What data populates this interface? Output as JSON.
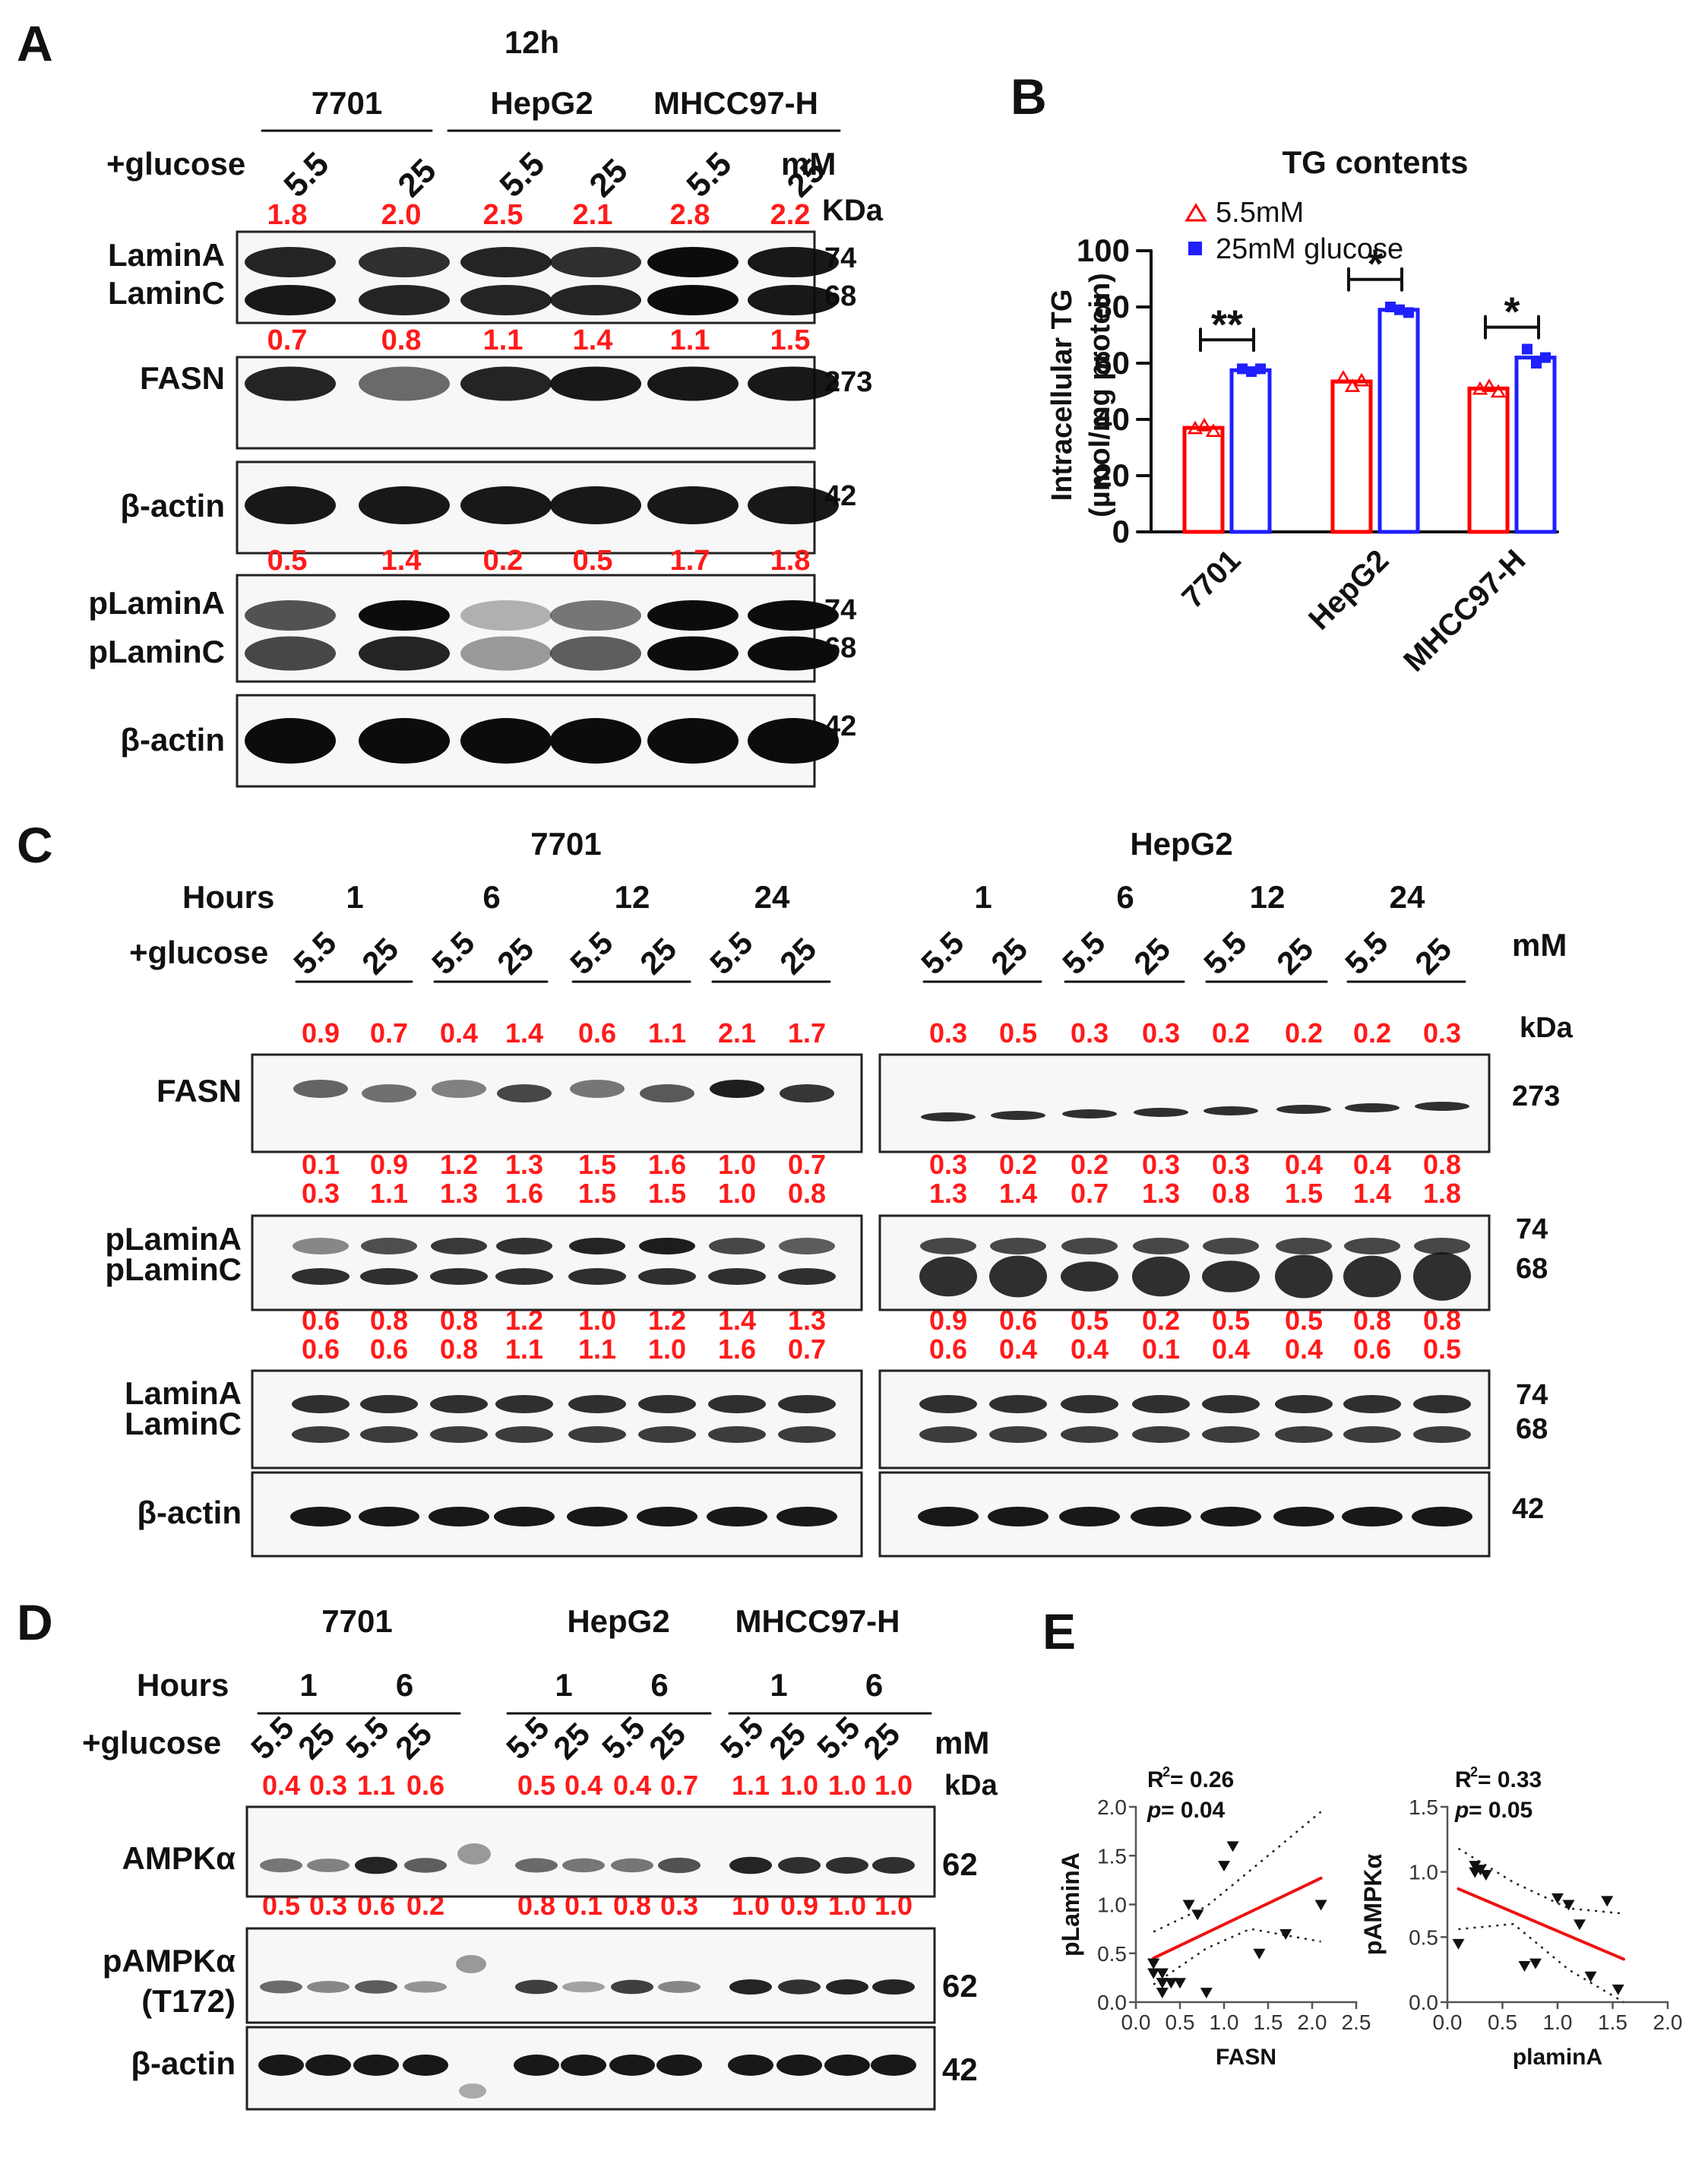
{
  "panelA": {
    "letter": "A",
    "time": "12h",
    "cell_lines": [
      "7701",
      "HepG2",
      "MHCC97-H"
    ],
    "glucose_label": "+glucose",
    "lanes": [
      "5.5",
      "25",
      "5.5",
      "25",
      "5.5",
      "25"
    ],
    "unit": "mM",
    "kda": "KDa",
    "blots": [
      {
        "labels": [
          "LaminA",
          "LaminC"
        ],
        "kda": [
          "74",
          "68"
        ],
        "quant": [
          "1.8",
          "2.0",
          "2.5",
          "2.1",
          "2.8",
          "2.2"
        ]
      },
      {
        "labels": [
          "FASN"
        ],
        "kda": [
          "273"
        ],
        "quant": [
          "0.7",
          "0.8",
          "1.1",
          "1.4",
          "1.1",
          "1.5"
        ]
      },
      {
        "labels": [
          "β-actin"
        ],
        "kda": [
          "42"
        ],
        "quant": []
      },
      {
        "labels": [
          "pLaminA",
          "pLaminC"
        ],
        "kda": [
          "74",
          "68"
        ],
        "quant": [
          "0.5",
          "1.4",
          "0.2",
          "0.5",
          "1.7",
          "1.8"
        ]
      },
      {
        "labels": [
          "β-actin"
        ],
        "kda": [
          "42"
        ],
        "quant": []
      }
    ]
  },
  "panelB": {
    "letter": "B",
    "chart_data": {
      "type": "bar",
      "title": "TG contents",
      "ylabel": "Intracellular TG",
      "ylabel2": "(µmol/mg protein)",
      "categories": [
        "7701",
        "HepG2",
        "MHCC97-H"
      ],
      "series": [
        {
          "name": "5.5mM",
          "color": "#ff0000",
          "marker": "triangle-open",
          "values": [
            37,
            53.5,
            51
          ],
          "points": [
            [
              37,
              38,
              36
            ],
            [
              55,
              52,
              54
            ],
            [
              51,
              52,
              50
            ]
          ]
        },
        {
          "name": "25mM glucose",
          "color": "#1f1fff",
          "marker": "square",
          "values": [
            57.5,
            79,
            62
          ],
          "points": [
            [
              58,
              57,
              58
            ],
            [
              80,
              79,
              78
            ],
            [
              65,
              60,
              62
            ]
          ]
        }
      ],
      "ylim": [
        0,
        100
      ],
      "yticks": [
        "0",
        "20",
        "40",
        "60",
        "80",
        "100"
      ],
      "significance": [
        "**",
        "*",
        "*"
      ]
    }
  },
  "panelC": {
    "letter": "C",
    "hours_label": "Hours",
    "glucose_label": "+glucose",
    "unit": "mM",
    "kda": "kDa",
    "hours": [
      "1",
      "6",
      "12",
      "24"
    ],
    "lanes": [
      "5.5",
      "25",
      "5.5",
      "25",
      "5.5",
      "25",
      "5.5",
      "25"
    ],
    "left": {
      "title": "7701",
      "fasn_quant": [
        "0.9",
        "0.7",
        "0.4",
        "1.4",
        "0.6",
        "1.1",
        "2.1",
        "1.7"
      ],
      "plamin_quant_a": [
        "0.1",
        "0.9",
        "1.2",
        "1.3",
        "1.5",
        "1.6",
        "1.0",
        "0.7"
      ],
      "plamin_quant_c": [
        "0.3",
        "1.1",
        "1.3",
        "1.6",
        "1.5",
        "1.5",
        "1.0",
        "0.8"
      ],
      "lamin_quant_a": [
        "0.6",
        "0.8",
        "0.8",
        "1.2",
        "1.0",
        "1.2",
        "1.4",
        "1.3"
      ],
      "lamin_quant_c": [
        "0.6",
        "0.6",
        "0.8",
        "1.1",
        "1.1",
        "1.0",
        "1.6",
        "0.7"
      ]
    },
    "right": {
      "title": "HepG2",
      "fasn_quant": [
        "0.3",
        "0.5",
        "0.3",
        "0.3",
        "0.2",
        "0.2",
        "0.2",
        "0.3"
      ],
      "plamin_quant_a": [
        "0.3",
        "0.2",
        "0.2",
        "0.3",
        "0.3",
        "0.4",
        "0.4",
        "0.8"
      ],
      "plamin_quant_c": [
        "1.3",
        "1.4",
        "0.7",
        "1.3",
        "0.8",
        "1.5",
        "1.4",
        "1.8"
      ],
      "lamin_quant_a": [
        "0.9",
        "0.6",
        "0.5",
        "0.2",
        "0.5",
        "0.5",
        "0.8",
        "0.8"
      ],
      "lamin_quant_c": [
        "0.6",
        "0.4",
        "0.4",
        "0.1",
        "0.4",
        "0.4",
        "0.6",
        "0.5"
      ]
    },
    "row_labels": {
      "fasn": "FASN",
      "plamina": "pLaminA",
      "plaminc": "pLaminC",
      "lamina": "LaminA",
      "laminc": "LaminC",
      "actin": "β-actin"
    },
    "kda_values": {
      "fasn": "273",
      "top": "74",
      "bottom": "68",
      "actin": "42"
    }
  },
  "panelD": {
    "letter": "D",
    "groups": [
      "7701",
      "HepG2",
      "MHCC97-H"
    ],
    "hours_label": "Hours",
    "glucose_label": "+glucose",
    "unit": "mM",
    "kda": "kDa",
    "hours": [
      "1",
      "6"
    ],
    "lanes": [
      "5.5",
      "25",
      "5.5",
      "25"
    ],
    "ampk_quant": [
      "0.4",
      "0.3",
      "1.1",
      "0.6",
      "0.5",
      "0.4",
      "0.4",
      "0.7",
      "1.1",
      "1.0",
      "1.0",
      "1.0"
    ],
    "pampk_quant": [
      "0.5",
      "0.3",
      "0.6",
      "0.2",
      "0.8",
      "0.1",
      "0.8",
      "0.3",
      "1.0",
      "0.9",
      "1.0",
      "1.0"
    ],
    "rows": [
      "AMPKα",
      "pAMPKα",
      "(T172)",
      "β-actin"
    ],
    "kda_values": [
      "62",
      "62",
      "42"
    ]
  },
  "panelE": {
    "letter": "E",
    "chart_data": [
      {
        "type": "scatter",
        "xlabel": "FASN",
        "ylabel": "pLaminA",
        "r2_prefix": "R",
        "r2_value": " = 0.26",
        "p_label": "p",
        "p_value": " = 0.04",
        "xlim": [
          0,
          2.5
        ],
        "ylim": [
          0,
          2.0
        ],
        "xticks": [
          "0.0",
          "0.5",
          "1.0",
          "1.5",
          "2.0",
          "2.5"
        ],
        "yticks": [
          "0.0",
          "0.5",
          "1.0",
          "1.5",
          "2.0"
        ],
        "points": [
          [
            0.3,
            0.1
          ],
          [
            0.7,
            0.9
          ],
          [
            0.4,
            0.2
          ],
          [
            1.4,
            0.5
          ],
          [
            0.6,
            1.0
          ],
          [
            1.1,
            1.6
          ],
          [
            2.1,
            1.0
          ],
          [
            1.7,
            0.7
          ],
          [
            0.3,
            0.3
          ],
          [
            0.5,
            0.2
          ],
          [
            0.3,
            0.2
          ],
          [
            0.3,
            0.3
          ],
          [
            0.2,
            0.3
          ],
          [
            0.2,
            0.4
          ],
          [
            0.2,
            0.4
          ],
          [
            0.3,
            0.2
          ],
          [
            1.0,
            1.4
          ],
          [
            0.8,
            0.1
          ]
        ],
        "fit": [
          [
            0.2,
            0.45
          ],
          [
            2.1,
            1.27
          ]
        ],
        "ci_upper": [
          [
            0.2,
            0.72
          ],
          [
            0.8,
            0.98
          ],
          [
            1.3,
            1.35
          ],
          [
            2.1,
            1.95
          ]
        ],
        "ci_lower": [
          [
            0.2,
            0.18
          ],
          [
            0.8,
            0.55
          ],
          [
            1.3,
            0.75
          ],
          [
            2.1,
            0.62
          ]
        ]
      },
      {
        "type": "scatter",
        "xlabel": "plaminA",
        "ylabel": "pAMPKα",
        "r2_prefix": "R",
        "r2_value": " = 0.33",
        "p_label": "p",
        "p_value": " = 0.05",
        "xlim": [
          0,
          2.0
        ],
        "ylim": [
          0,
          1.5
        ],
        "xticks": [
          "0.0",
          "0.5",
          "1.0",
          "1.5",
          "2.0"
        ],
        "yticks": [
          "0.0",
          "0.5",
          "1.0",
          "1.5"
        ],
        "points": [
          [
            0.1,
            0.45
          ],
          [
            0.25,
            1.0
          ],
          [
            0.3,
            1.02
          ],
          [
            0.35,
            0.98
          ],
          [
            0.25,
            1.05
          ],
          [
            0.7,
            0.28
          ],
          [
            0.8,
            0.3
          ],
          [
            1.0,
            0.8
          ],
          [
            1.1,
            0.75
          ],
          [
            1.2,
            0.6
          ],
          [
            1.3,
            0.2
          ],
          [
            1.45,
            0.78
          ],
          [
            1.55,
            0.1
          ]
        ],
        "fit": [
          [
            0.1,
            0.87
          ],
          [
            1.6,
            0.33
          ]
        ],
        "ci_upper": [
          [
            0.1,
            1.18
          ],
          [
            0.6,
            0.92
          ],
          [
            1.1,
            0.72
          ],
          [
            1.6,
            0.68
          ]
        ],
        "ci_lower": [
          [
            0.1,
            0.56
          ],
          [
            0.6,
            0.6
          ],
          [
            1.1,
            0.25
          ],
          [
            1.6,
            0.0
          ]
        ]
      }
    ]
  }
}
